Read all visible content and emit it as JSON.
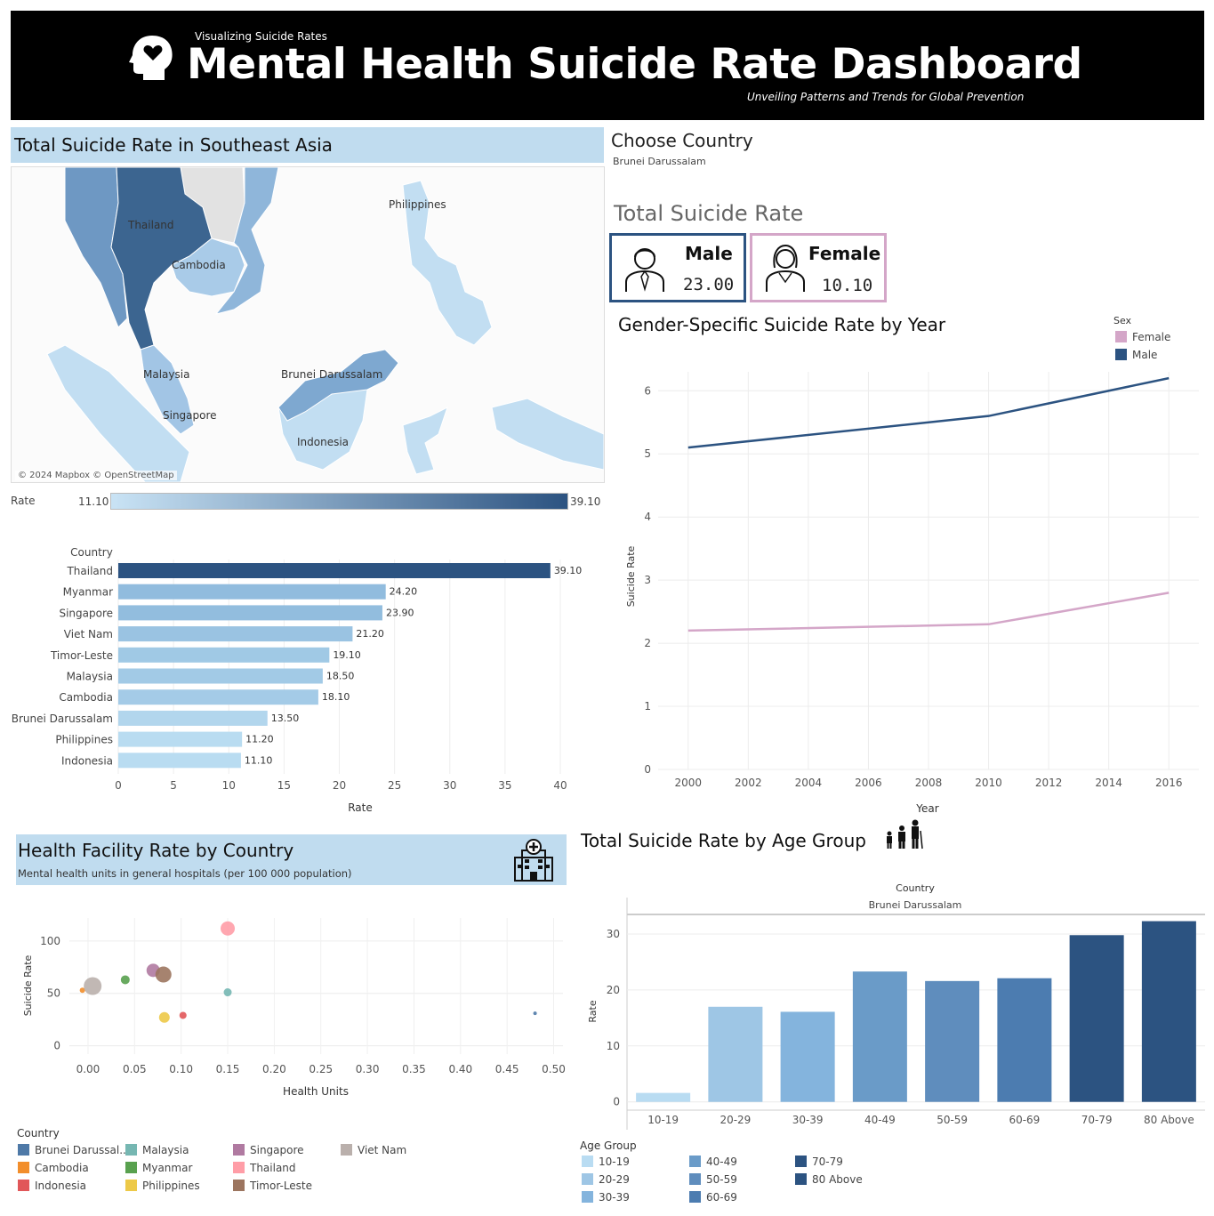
{
  "header": {
    "subtitle": "Visualizing Suicide Rates",
    "title": "Mental Health Suicide Rate Dashboard",
    "tagline": "Unveiling Patterns and Trends for Global Prevention"
  },
  "map": {
    "title": "Total Suicide Rate in Southeast Asia",
    "labels": {
      "thailand": "Thailand",
      "cambodia": "Cambodia",
      "philippines": "Philippines",
      "malaysia": "Malaysia",
      "brunei": "Brunei Darussalam",
      "singapore": "Singapore",
      "indonesia": "Indonesia"
    },
    "attribution": "© 2024 Mapbox © OpenStreetMap",
    "legend_title": "Rate",
    "legend_min": "11.10",
    "legend_max": "39.10"
  },
  "filter": {
    "title": "Choose Country",
    "selected": "Brunei Darussalam"
  },
  "kpis": {
    "title": "Total Suicide Rate",
    "male_label": "Male",
    "male_value": "23.00",
    "female_label": "Female",
    "female_value": "10.10"
  },
  "colors": {
    "male": "#2c5381",
    "female": "#d4a6c8",
    "band": "#c0dcef"
  },
  "chart_data": [
    {
      "type": "bar",
      "orientation": "horizontal",
      "column_header": "Country",
      "categories": [
        "Thailand",
        "Myanmar",
        "Singapore",
        "Viet Nam",
        "Timor-Leste",
        "Malaysia",
        "Cambodia",
        "Brunei Darussalam",
        "Philippines",
        "Indonesia"
      ],
      "values": [
        39.1,
        24.2,
        23.9,
        21.2,
        19.1,
        18.5,
        18.1,
        13.5,
        11.2,
        11.1
      ],
      "data_labels": [
        "39.10",
        "24.20",
        "23.90",
        "21.20",
        "19.10",
        "18.50",
        "18.10",
        "13.50",
        "11.20",
        "11.10"
      ],
      "xlabel": "Rate",
      "xlim": [
        0,
        40
      ],
      "xticks": [
        0,
        5,
        10,
        15,
        20,
        25,
        30,
        35,
        40
      ]
    },
    {
      "type": "line",
      "title": "Gender-Specific Suicide Rate by Year",
      "xlabel": "Year",
      "ylabel": "Suicide Rate",
      "ylim": [
        0,
        6.3
      ],
      "yticks": [
        0,
        1,
        2,
        3,
        4,
        5,
        6
      ],
      "xlim": [
        1999,
        2017
      ],
      "xticks": [
        2000,
        2002,
        2004,
        2006,
        2008,
        2010,
        2012,
        2014,
        2016
      ],
      "legend_title": "Sex",
      "legend_position": "top-right",
      "series": [
        {
          "name": "Female",
          "color": "#d4a6c8",
          "x": [
            2000,
            2010,
            2016
          ],
          "y": [
            2.2,
            2.3,
            2.8
          ]
        },
        {
          "name": "Male",
          "color": "#2c5381",
          "x": [
            2000,
            2010,
            2016
          ],
          "y": [
            5.1,
            5.6,
            6.2
          ]
        }
      ]
    },
    {
      "type": "scatter",
      "title": "Health Facility Rate by Country",
      "subtitle": "Mental health units in general hospitals (per 100 000 population)",
      "xlabel": "Health Units",
      "ylabel": "Suicide Rate",
      "xlim": [
        -0.02,
        0.51
      ],
      "ylim": [
        -8,
        122
      ],
      "xticks": [
        "0.00",
        "0.05",
        "0.10",
        "0.15",
        "0.20",
        "0.25",
        "0.30",
        "0.35",
        "0.40",
        "0.45",
        "0.50"
      ],
      "yticks": [
        0,
        50,
        100
      ],
      "legend_title": "Country",
      "legend_position": "bottom",
      "points": [
        {
          "name": "Brunei Darussal..",
          "x": 0.48,
          "y": 31,
          "size": 2,
          "color": "#4e79a7"
        },
        {
          "name": "Cambodia",
          "x": -0.006,
          "y": 53,
          "size": 3,
          "color": "#f28e2b"
        },
        {
          "name": "Indonesia",
          "x": 0.102,
          "y": 29,
          "size": 4,
          "color": "#e15759"
        },
        {
          "name": "Malaysia",
          "x": 0.15,
          "y": 51,
          "size": 4.5,
          "color": "#76b7b2"
        },
        {
          "name": "Myanmar",
          "x": 0.04,
          "y": 63,
          "size": 5,
          "color": "#59a14f"
        },
        {
          "name": "Philippines",
          "x": 0.082,
          "y": 27,
          "size": 6,
          "color": "#edc948"
        },
        {
          "name": "Singapore",
          "x": 0.07,
          "y": 72,
          "size": 7.5,
          "color": "#b07aa1"
        },
        {
          "name": "Thailand",
          "x": 0.15,
          "y": 112,
          "size": 8,
          "color": "#ff9da7"
        },
        {
          "name": "Timor-Leste",
          "x": 0.081,
          "y": 68,
          "size": 9,
          "color": "#9c755f"
        },
        {
          "name": "Viet Nam",
          "x": 0.005,
          "y": 57,
          "size": 10,
          "color": "#bab0ac"
        }
      ]
    },
    {
      "type": "bar",
      "title": "Total Suicide Rate by Age Group",
      "panel_header": "Country",
      "panel_value": "Brunei Darussalam",
      "ylabel": "Rate",
      "ylim": [
        -1,
        33.5
      ],
      "yticks": [
        0,
        10,
        20,
        30
      ],
      "legend_title": "Age Group",
      "legend_position": "bottom-left",
      "categories": [
        "10-19",
        "20-29",
        "30-39",
        "40-49",
        "50-59",
        "60-69",
        "70-79",
        "80 Above"
      ],
      "values": [
        1.6,
        17.0,
        16.1,
        23.3,
        21.6,
        22.1,
        29.8,
        32.3
      ],
      "colors": [
        "#b9dcf2",
        "#9ec6e5",
        "#84b4dd",
        "#6a9bc8",
        "#5f8dbd",
        "#4c7cb0",
        "#2c5381",
        "#2c5381"
      ]
    }
  ]
}
